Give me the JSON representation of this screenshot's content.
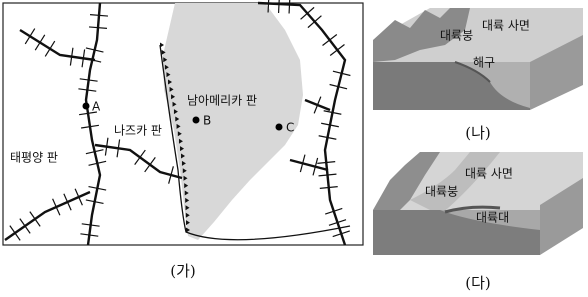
{
  "map": {
    "caption": "(가)",
    "labels": {
      "south_america_plate": "남아메리카 판",
      "nazca_plate": "나즈카 판",
      "pacific_plate": "태평양 판"
    },
    "points": [
      {
        "label": "A"
      },
      {
        "label": "B"
      },
      {
        "label": "C"
      }
    ]
  },
  "diagram_b": {
    "caption": "(나)",
    "labels": [
      "대륙 사면",
      "대륙붕",
      "해구"
    ]
  },
  "diagram_c": {
    "caption": "(다)",
    "labels": [
      "대륙 사면",
      "대륙붕",
      "대륙대"
    ]
  }
}
